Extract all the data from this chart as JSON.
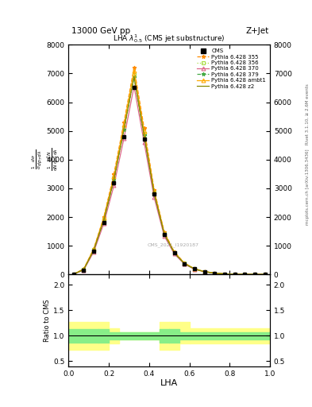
{
  "title": "13000 GeV pp",
  "top_right_label": "Z+Jet",
  "plot_title": "LHA $\\lambda^{1}_{0.5}$ (CMS jet substructure)",
  "xlabel": "LHA",
  "ylabel_ratio": "Ratio to CMS",
  "right_label_top": "Rivet 3.1.10, ≥ 2.6M events",
  "right_label_bottom": "mcplots.cern.ch [arXiv:1306.3436]",
  "watermark": "CMS_2021_I1920187",
  "cms_x": [
    0.025,
    0.075,
    0.125,
    0.175,
    0.225,
    0.275,
    0.325,
    0.375,
    0.425,
    0.475,
    0.525,
    0.575,
    0.625,
    0.675,
    0.725,
    0.775,
    0.825,
    0.875,
    0.925,
    0.975
  ],
  "cms_y": [
    10,
    150,
    800,
    1800,
    3200,
    4800,
    6500,
    4700,
    2800,
    1400,
    750,
    380,
    190,
    95,
    45,
    18,
    8,
    4,
    1.5,
    0.5
  ],
  "series": [
    {
      "label": "Pythia 6.428 355",
      "color": "#FF8C00",
      "linestyle": "--",
      "marker": "*",
      "markerfacecolor": "#FF8C00",
      "y": [
        12,
        190,
        900,
        2000,
        3500,
        5300,
        7200,
        5100,
        2950,
        1480,
        790,
        400,
        200,
        100,
        48,
        19,
        9,
        4.5,
        1.6,
        0.6
      ]
    },
    {
      "label": "Pythia 6.428 356",
      "color": "#AADD44",
      "linestyle": ":",
      "marker": "s",
      "markerfacecolor": "none",
      "y": [
        11,
        175,
        860,
        1920,
        3350,
        5100,
        6950,
        4900,
        2850,
        1430,
        760,
        385,
        193,
        97,
        46,
        18.5,
        8.5,
        4.2,
        1.5,
        0.55
      ]
    },
    {
      "label": "Pythia 6.428 370",
      "color": "#DD6688",
      "linestyle": "-",
      "marker": "^",
      "markerfacecolor": "none",
      "y": [
        9,
        155,
        790,
        1780,
        3100,
        4750,
        6550,
        4600,
        2680,
        1340,
        715,
        360,
        180,
        90,
        43,
        17.5,
        8,
        4,
        1.4,
        0.5
      ]
    },
    {
      "label": "Pythia 6.428 379",
      "color": "#44AA44",
      "linestyle": "--",
      "marker": "*",
      "markerfacecolor": "#44AA44",
      "y": [
        11,
        172,
        850,
        1900,
        3300,
        5050,
        6870,
        4840,
        2820,
        1415,
        754,
        380,
        191,
        96,
        46,
        18.4,
        8.4,
        4.2,
        1.5,
        0.54
      ]
    },
    {
      "label": "Pythia 6.428 ambt1",
      "color": "#FFAA00",
      "linestyle": "-",
      "marker": "^",
      "markerfacecolor": "none",
      "y": [
        12,
        185,
        890,
        1980,
        3420,
        5220,
        7100,
        4990,
        2900,
        1455,
        775,
        393,
        197,
        99,
        47,
        18.8,
        8.6,
        4.3,
        1.55,
        0.58
      ]
    },
    {
      "label": "Pythia 6.428 z2",
      "color": "#888800",
      "linestyle": "-",
      "marker": null,
      "markerfacecolor": null,
      "y": [
        11,
        173,
        852,
        1905,
        3310,
        5060,
        6880,
        4845,
        2825,
        1418,
        756,
        381,
        192,
        96,
        46,
        18.5,
        8.4,
        4.2,
        1.5,
        0.54
      ]
    }
  ],
  "ratio_bands": [
    {
      "x": [
        0.0,
        0.15
      ],
      "green_lo": 0.87,
      "green_hi": 1.13,
      "yellow_lo": 0.73,
      "yellow_hi": 1.27
    },
    {
      "x": [
        0.15,
        0.2
      ],
      "green_lo": 0.87,
      "green_hi": 1.13,
      "yellow_lo": 0.73,
      "yellow_hi": 1.27
    },
    {
      "x": [
        0.2,
        0.25
      ],
      "green_lo": 0.93,
      "green_hi": 1.07,
      "yellow_lo": 0.85,
      "yellow_hi": 1.15
    },
    {
      "x": [
        0.25,
        0.45
      ],
      "green_lo": 0.93,
      "green_hi": 1.07,
      "yellow_lo": 0.93,
      "yellow_hi": 1.07
    },
    {
      "x": [
        0.45,
        0.5
      ],
      "green_lo": 0.87,
      "green_hi": 1.13,
      "yellow_lo": 0.73,
      "yellow_hi": 1.27
    },
    {
      "x": [
        0.5,
        0.55
      ],
      "green_lo": 0.87,
      "green_hi": 1.13,
      "yellow_lo": 0.73,
      "yellow_hi": 1.27
    },
    {
      "x": [
        0.55,
        0.6
      ],
      "green_lo": 0.93,
      "green_hi": 1.07,
      "yellow_lo": 0.85,
      "yellow_hi": 1.27
    },
    {
      "x": [
        0.6,
        1.0
      ],
      "green_lo": 0.93,
      "green_hi": 1.07,
      "yellow_lo": 0.85,
      "yellow_hi": 1.15
    }
  ],
  "ylim_main": [
    0,
    8000
  ],
  "ylim_ratio": [
    0.4,
    2.2
  ],
  "yticks_main": [
    0,
    1000,
    2000,
    3000,
    4000,
    5000,
    6000,
    7000,
    8000
  ],
  "yticks_ratio": [
    0.5,
    1.0,
    1.5,
    2.0
  ],
  "xlim": [
    0,
    1
  ]
}
